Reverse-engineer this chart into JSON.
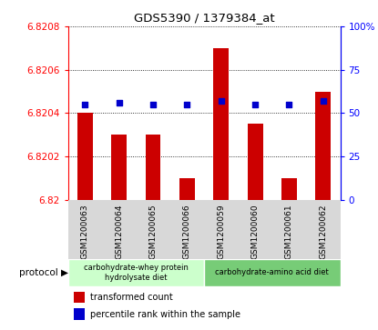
{
  "title": "GDS5390 / 1379384_at",
  "samples": [
    "GSM1200063",
    "GSM1200064",
    "GSM1200065",
    "GSM1200066",
    "GSM1200059",
    "GSM1200060",
    "GSM1200061",
    "GSM1200062"
  ],
  "bar_values": [
    6.8204,
    6.8203,
    6.8203,
    6.8201,
    6.8207,
    6.82035,
    6.8201,
    6.8205
  ],
  "pct_values": [
    55,
    56,
    55,
    55,
    57,
    55,
    55,
    57
  ],
  "bar_color": "#cc0000",
  "percentile_color": "#0000cc",
  "ymin": 6.82,
  "ymax": 6.8208,
  "yticks": [
    6.82,
    6.8202,
    6.8204,
    6.8206,
    6.8208
  ],
  "ytick_labels": [
    "6.82",
    "6.8202",
    "6.8204",
    "6.8206",
    "6.8208"
  ],
  "y2min": 0,
  "y2max": 100,
  "y2ticks": [
    0,
    25,
    50,
    75,
    100
  ],
  "y2tick_labels": [
    "0",
    "25",
    "50",
    "75",
    "100%"
  ],
  "group1_label": "carbohydrate-whey protein\nhydrolysate diet",
  "group2_label": "carbohydrate-amino acid diet",
  "group1_color": "#ccffcc",
  "group2_color": "#77cc77",
  "group1_n": 4,
  "group2_n": 4,
  "legend_bar_label": "transformed count",
  "legend_pct_label": "percentile rank within the sample"
}
